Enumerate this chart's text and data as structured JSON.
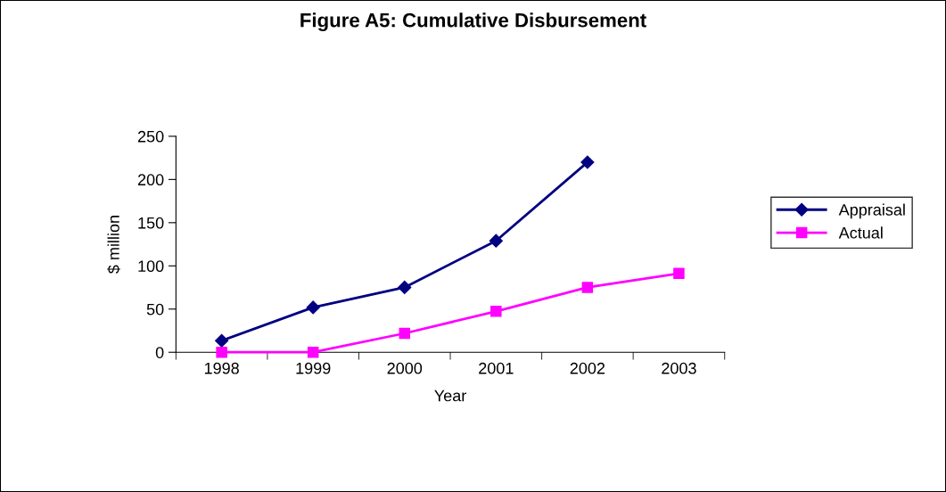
{
  "chart_data": {
    "type": "line",
    "title": "Figure A5: Cumulative Disbursement",
    "xlabel": "Year",
    "ylabel": "$ million",
    "categories": [
      "1998",
      "1999",
      "2000",
      "2001",
      "2002",
      "2003"
    ],
    "series": [
      {
        "name": "Appraisal",
        "color": "#000080",
        "marker": "diamond",
        "values": [
          13.4,
          51.9,
          75.1,
          129,
          220,
          null
        ]
      },
      {
        "name": "Actual",
        "color": "#ff00ff",
        "marker": "square",
        "values": [
          0,
          0,
          21.9,
          47.4,
          75.1,
          91.2
        ]
      }
    ],
    "ylim": [
      0,
      250
    ],
    "yticks": [
      0,
      50,
      100,
      150,
      200,
      250
    ],
    "grid": false,
    "legend": "right",
    "line_style": "solid"
  }
}
